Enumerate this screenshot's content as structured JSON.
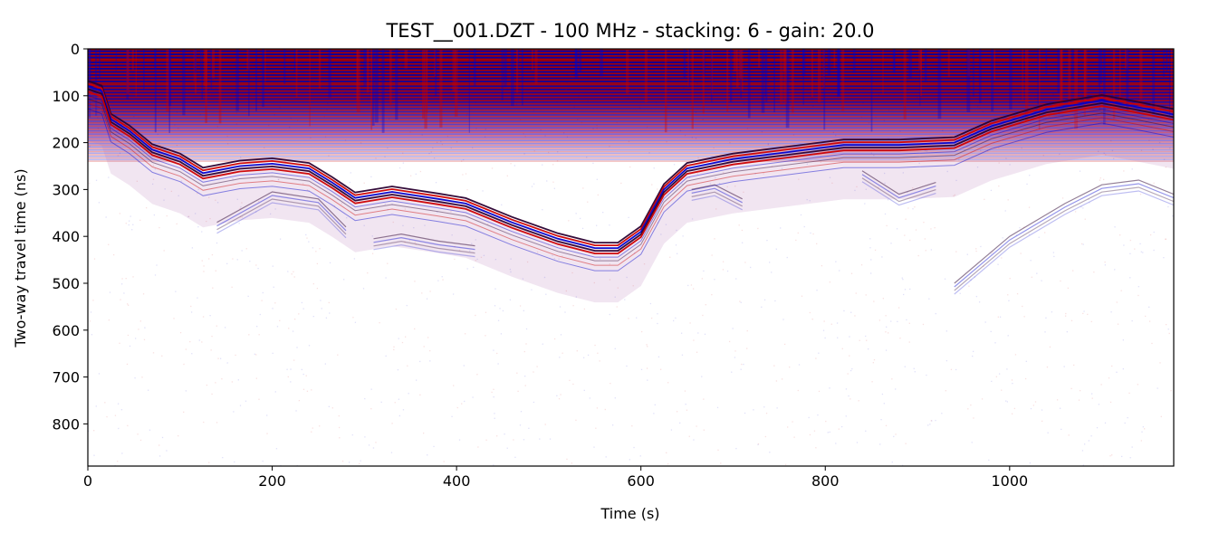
{
  "chart_data": {
    "type": "heatmap",
    "title": "TEST__001.DZT - 100 MHz - stacking: 6 - gain: 20.0",
    "xlabel": "Time (s)",
    "ylabel": "Two-way travel time (ns)",
    "xlim": [
      0,
      1178
    ],
    "ylim": [
      890,
      0
    ],
    "x_ticks": [
      0,
      200,
      400,
      600,
      800,
      1000
    ],
    "y_ticks": [
      0,
      100,
      200,
      300,
      400,
      500,
      600,
      700,
      800
    ],
    "grid": false,
    "colormap": "seismic",
    "colors": {
      "positive": "#cc0000",
      "negative": "#0000cc",
      "zero": "#ffffff",
      "dark": "#2a0030"
    },
    "surface_reflector_ns": [
      [
        0,
        80
      ],
      [
        15,
        90
      ],
      [
        25,
        150
      ],
      [
        45,
        175
      ],
      [
        70,
        215
      ],
      [
        100,
        235
      ],
      [
        125,
        265
      ],
      [
        165,
        250
      ],
      [
        200,
        245
      ],
      [
        240,
        255
      ],
      [
        265,
        285
      ],
      [
        290,
        318
      ],
      [
        330,
        305
      ],
      [
        380,
        320
      ],
      [
        410,
        330
      ],
      [
        460,
        370
      ],
      [
        510,
        405
      ],
      [
        550,
        425
      ],
      [
        575,
        425
      ],
      [
        600,
        390
      ],
      [
        625,
        300
      ],
      [
        650,
        255
      ],
      [
        700,
        235
      ],
      [
        760,
        220
      ],
      [
        820,
        205
      ],
      [
        880,
        205
      ],
      [
        940,
        200
      ],
      [
        980,
        165
      ],
      [
        1040,
        130
      ],
      [
        1100,
        110
      ],
      [
        1140,
        125
      ],
      [
        1178,
        140
      ]
    ],
    "deep_reflectors_ns": [
      [
        [
          140,
          370
        ],
        [
          200,
          305
        ],
        [
          250,
          320
        ],
        [
          280,
          380
        ]
      ],
      [
        [
          310,
          405
        ],
        [
          340,
          395
        ],
        [
          380,
          410
        ],
        [
          420,
          420
        ]
      ],
      [
        [
          655,
          300
        ],
        [
          680,
          290
        ],
        [
          710,
          320
        ]
      ],
      [
        [
          840,
          260
        ],
        [
          880,
          310
        ],
        [
          920,
          285
        ]
      ],
      [
        [
          940,
          500
        ],
        [
          1000,
          400
        ],
        [
          1060,
          330
        ],
        [
          1100,
          290
        ],
        [
          1140,
          280
        ],
        [
          1178,
          310
        ]
      ]
    ]
  }
}
